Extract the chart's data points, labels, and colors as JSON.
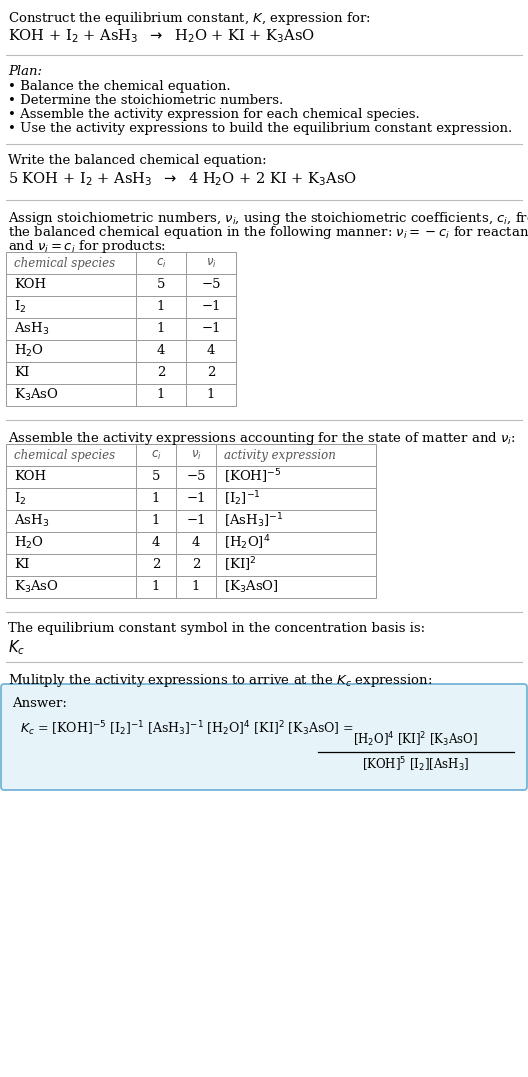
{
  "bg_color": "#ffffff",
  "text_color": "#000000",
  "separator_color": "#bbbbbb",
  "plan_header": "Plan:",
  "plan_items": [
    "• Balance the chemical equation.",
    "• Determine the stoichiometric numbers.",
    "• Assemble the activity expression for each chemical species.",
    "• Use the activity expressions to build the equilibrium constant expression."
  ],
  "table1_data": [
    [
      "KOH",
      "5",
      "−5"
    ],
    [
      "I$_2$",
      "1",
      "−1"
    ],
    [
      "AsH$_3$",
      "1",
      "−1"
    ],
    [
      "H$_2$O",
      "4",
      "4"
    ],
    [
      "KI",
      "2",
      "2"
    ],
    [
      "K$_3$AsO",
      "1",
      "1"
    ]
  ],
  "table2_data": [
    [
      "KOH",
      "5",
      "−5",
      "[KOH]$^{-5}$"
    ],
    [
      "I$_2$",
      "1",
      "−1",
      "[I$_2$]$^{-1}$"
    ],
    [
      "AsH$_3$",
      "1",
      "−1",
      "[AsH$_3$]$^{-1}$"
    ],
    [
      "H$_2$O",
      "4",
      "4",
      "[H$_2$O]$^4$"
    ],
    [
      "KI",
      "2",
      "2",
      "[KI]$^2$"
    ],
    [
      "K$_3$AsO",
      "1",
      "1",
      "[K$_3$AsO]"
    ]
  ],
  "answer_box_color": "#e6f3f8",
  "answer_box_border": "#6baed6",
  "font_size": 9.5
}
